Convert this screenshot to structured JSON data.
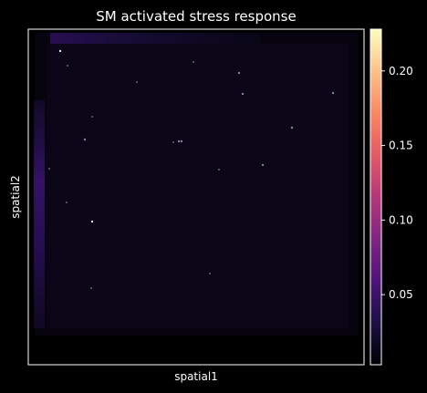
{
  "chart_data": {
    "type": "heatmap",
    "title": "SM activated stress response",
    "xlabel": "spatial1",
    "ylabel": "spatial2",
    "colormap": "magma",
    "background": "#000000",
    "grid": false,
    "colorbar": {
      "range": [
        0.003,
        0.228
      ],
      "ticks": [
        0.05,
        0.1,
        0.15,
        0.2
      ],
      "tick_labels": [
        "0.05",
        "0.10",
        "0.15",
        "0.20"
      ],
      "placement": "right"
    },
    "summary": "Spatial scatter of spots; almost all values near the minimum (dark), with slightly elevated values along the top and left edges of the tissue and a few isolated bright spots."
  },
  "colors": {
    "axis": "#ffffff",
    "text": "#ffffff",
    "magma_stops": [
      "#000004",
      "#1c1044",
      "#4f127b",
      "#812581",
      "#b5367a",
      "#e55964",
      "#fb8761",
      "#fec287",
      "#fcfdbf"
    ]
  }
}
